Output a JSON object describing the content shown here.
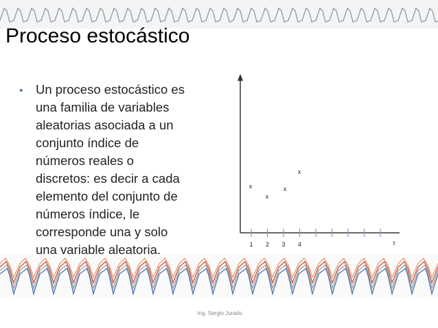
{
  "title": "Proceso estocástico",
  "body": {
    "bullet": {
      "lines": [
        "Un proceso estocástico es",
        "una familia de variables",
        "aleatorias asociada a un",
        "conjunto índice de",
        "números reales o",
        "discretos: es decir a cada",
        "elemento del conjunto de",
        "números índice, le",
        "corresponde una y solo",
        "una variable aleatoria."
      ]
    }
  },
  "diagram": {
    "tick_labels": [
      "1",
      "2",
      "3",
      "4"
    ],
    "axis_label": "t",
    "points": [
      "x",
      "x",
      "x",
      "x"
    ]
  },
  "footer": "Ing. Sergio Jurado"
}
